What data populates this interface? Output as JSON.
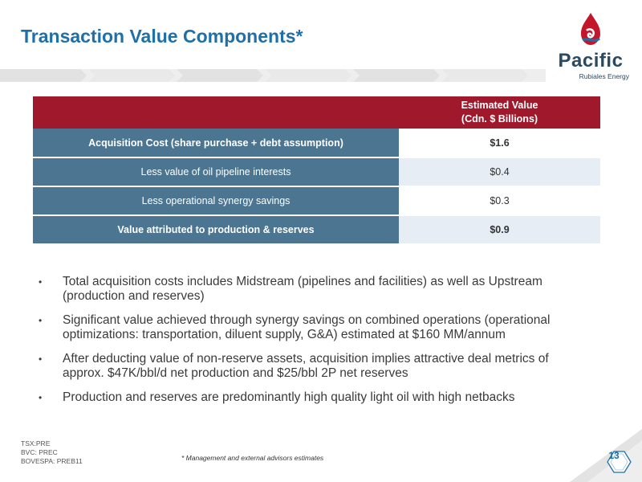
{
  "title": "Transaction Value Components*",
  "logo": {
    "name": "Pacific",
    "sub": "Rubiales Energy",
    "colors": {
      "drop_red": "#c4162a",
      "drop_blue": "#1f6fa8",
      "text": "#2a4a62"
    }
  },
  "table": {
    "header": {
      "line1": "Estimated Value",
      "line2": "(Cdn. $ Billions)"
    },
    "rows": [
      {
        "label": "Acquisition Cost (share purchase + debt assumption)",
        "value": "$1.6"
      },
      {
        "label": "Less value of oil pipeline interests",
        "value": "$0.4"
      },
      {
        "label": "Less operational synergy savings",
        "value": "$0.3"
      },
      {
        "label": "Value attributed to production & reserves",
        "value": "$0.9"
      }
    ],
    "colors": {
      "header": "#a0182c",
      "label_bg": "#4b7590",
      "alt_row": "#e6edf5"
    }
  },
  "bullets": {
    "marker": "•",
    "items": [
      "Total acquisition costs includes Midstream (pipelines and facilities) as well as Upstream (production and reserves)",
      "Significant value achieved through synergy savings on combined operations (operational optimizations: transportation, diluent supply, G&A) estimated at $160 MM/annum",
      "After deducting value of non-reserve assets, acquisition implies attractive deal metrics of approx. $47K/bbl/d net production and $25/bbl 2P net reserves",
      "Production and reserves are predominantly high quality light oil with high netbacks"
    ]
  },
  "footer": {
    "tickers": [
      "TSX:PRE",
      "BVC: PREC",
      "BOVESPA: PREB11"
    ],
    "footnote": "*  Management and external advisors estimates",
    "page_number": "13"
  }
}
